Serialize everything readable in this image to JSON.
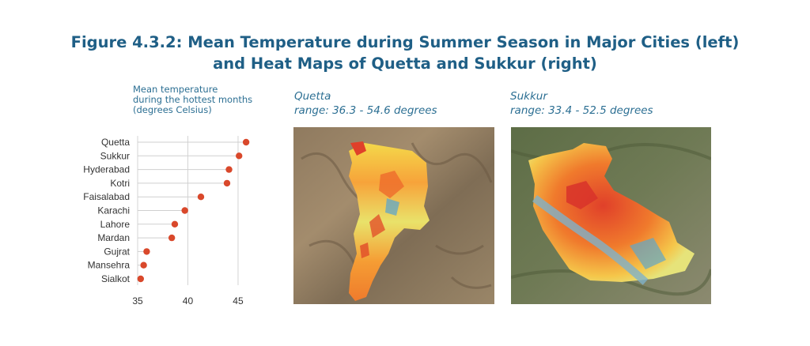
{
  "title": {
    "line1": "Figure 4.3.2: Mean Temperature during Summer Season in Major Cities (left)",
    "line2": "and Heat Maps of Quetta and Sukkur (right)"
  },
  "colors": {
    "title": "#1f5f86",
    "caption": "#2c6f93",
    "dot": "#d9482b"
  },
  "chart_data": [
    {
      "type": "scatter",
      "title": "",
      "ylabel_lines": [
        "Mean temperature",
        "during the hottest months",
        "(degrees Celsius)"
      ],
      "categories": [
        "Quetta",
        "Sukkur",
        "Hyderabad",
        "Kotri",
        "Faisalabad",
        "Karachi",
        "Lahore",
        "Mardan",
        "Gujrat",
        "Mansehra",
        "Sialkot"
      ],
      "values": [
        45.8,
        45.1,
        44.1,
        43.9,
        41.3,
        39.7,
        38.7,
        38.4,
        35.9,
        35.6,
        35.3
      ],
      "xlim": [
        35,
        46.5
      ],
      "xticks": [
        35,
        40,
        45
      ],
      "grid": true,
      "legend": "none"
    }
  ],
  "maps": [
    {
      "name": "Quetta",
      "range_text": "range: 36.3 - 54.6 degrees"
    },
    {
      "name": "Sukkur",
      "range_text": "range: 33.4 - 52.5 degrees"
    }
  ]
}
